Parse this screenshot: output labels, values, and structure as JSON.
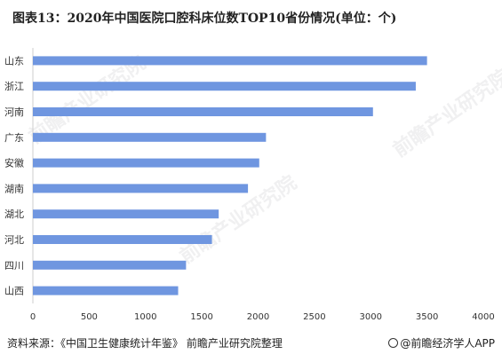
{
  "title": "图表13：2020年中国医院口腔科床位数TOP10省份情况(单位：个)",
  "source": "资料来源：《中国卫生健康统计年鉴》 前瞻产业研究院整理",
  "brand": "@前瞻经济学人APP",
  "watermark": "前瞻产业研究院",
  "colors": {
    "bar": "#6f96e0",
    "axis": "#cccccc",
    "text": "#333333"
  },
  "chart_data": {
    "type": "bar",
    "orientation": "horizontal",
    "categories": [
      "山东",
      "浙江",
      "河南",
      "广东",
      "安徽",
      "湖南",
      "湖北",
      "河北",
      "四川",
      "山西"
    ],
    "values": [
      3500,
      3400,
      3020,
      2070,
      2010,
      1910,
      1650,
      1590,
      1360,
      1290
    ],
    "xlim": [
      0,
      4000
    ],
    "xticks": [
      0,
      500,
      1000,
      1500,
      2000,
      2500,
      3000,
      3500,
      4000
    ],
    "grid": false,
    "legend": "none"
  }
}
